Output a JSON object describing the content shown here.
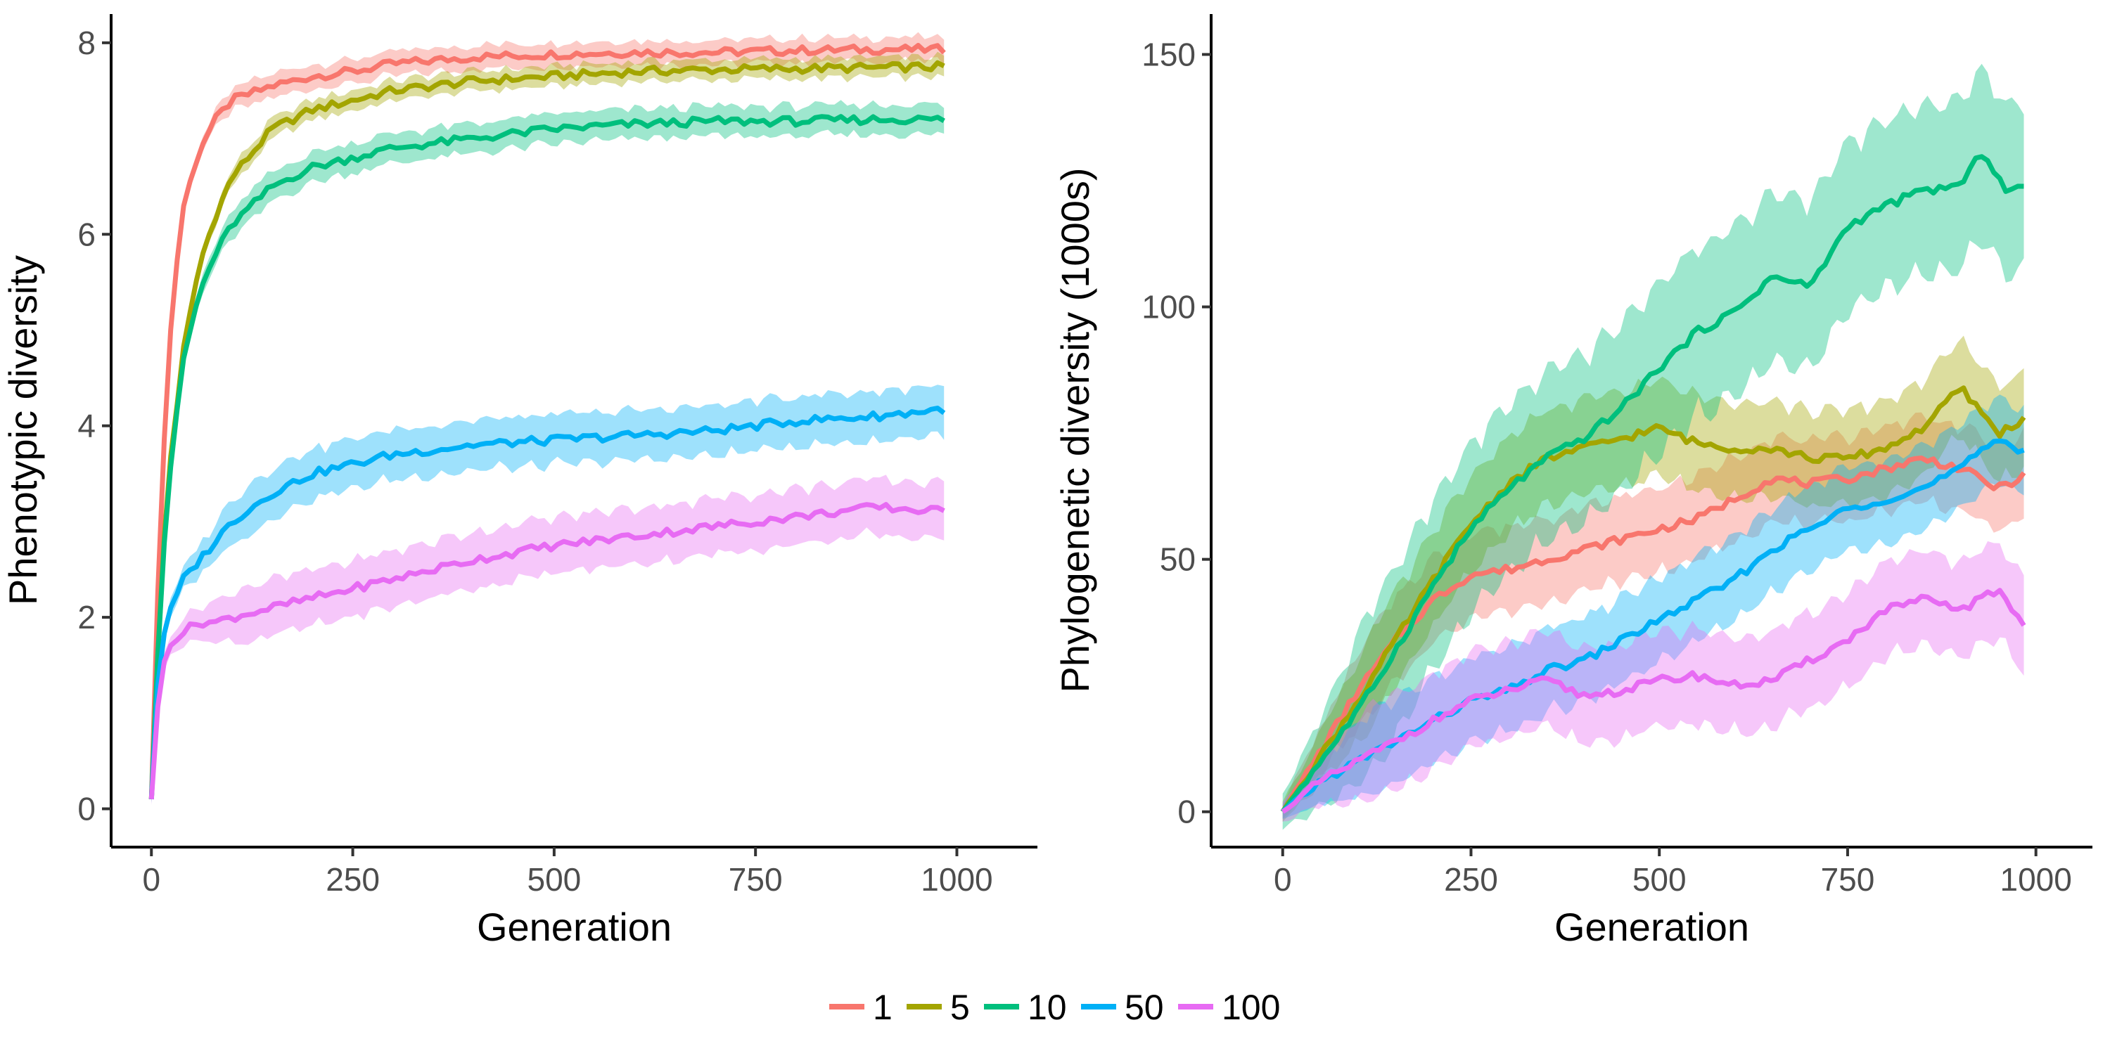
{
  "legend": {
    "entries": [
      {
        "label": "1",
        "color": "#F8766D"
      },
      {
        "label": "5",
        "color": "#A3A500"
      },
      {
        "label": "10",
        "color": "#00BF7D"
      },
      {
        "label": "50",
        "color": "#00B0F6"
      },
      {
        "label": "100",
        "color": "#E76BF3"
      }
    ]
  },
  "chart_data": [
    {
      "type": "line",
      "title": "",
      "xlabel": "Generation",
      "ylabel": "Phenotypic diversity",
      "xlim": [
        -50,
        1100
      ],
      "ylim": [
        -0.4,
        8.3
      ],
      "xticks": [
        0,
        250,
        500,
        750,
        1000
      ],
      "yticks": [
        0,
        2,
        4,
        6,
        8
      ],
      "grid": false,
      "band": "shaded confidence ribbon around each series",
      "series": [
        {
          "name": "1",
          "color": "#F8766D",
          "x": [
            0,
            10,
            20,
            30,
            40,
            60,
            80,
            100,
            150,
            200,
            250,
            300,
            400,
            500,
            600,
            700,
            800,
            900,
            990
          ],
          "y": [
            0.1,
            2.8,
            4.6,
            5.6,
            6.3,
            6.9,
            7.2,
            7.4,
            7.55,
            7.65,
            7.7,
            7.78,
            7.85,
            7.88,
            7.9,
            7.9,
            7.92,
            7.93,
            7.93
          ],
          "band_halfwidth": 0.12
        },
        {
          "name": "5",
          "color": "#A3A500",
          "x": [
            0,
            10,
            20,
            40,
            60,
            80,
            100,
            150,
            200,
            250,
            300,
            400,
            500,
            600,
            700,
            800,
            900,
            990
          ],
          "y": [
            0.1,
            2.0,
            3.4,
            4.8,
            5.7,
            6.2,
            6.6,
            7.1,
            7.3,
            7.4,
            7.5,
            7.6,
            7.65,
            7.7,
            7.72,
            7.73,
            7.74,
            7.75
          ],
          "band_halfwidth": 0.1
        },
        {
          "name": "10",
          "color": "#00BF7D",
          "x": [
            0,
            10,
            20,
            40,
            60,
            80,
            100,
            150,
            200,
            250,
            300,
            400,
            500,
            600,
            700,
            800,
            900,
            990
          ],
          "y": [
            0.1,
            2.0,
            3.3,
            4.7,
            5.4,
            5.8,
            6.1,
            6.5,
            6.7,
            6.8,
            6.9,
            7.0,
            7.1,
            7.15,
            7.18,
            7.18,
            7.2,
            7.2
          ],
          "band_halfwidth": 0.15
        },
        {
          "name": "50",
          "color": "#00B0F6",
          "x": [
            0,
            10,
            20,
            40,
            60,
            80,
            100,
            150,
            200,
            250,
            300,
            400,
            500,
            600,
            700,
            800,
            900,
            990
          ],
          "y": [
            0.1,
            1.6,
            2.0,
            2.4,
            2.6,
            2.8,
            3.0,
            3.3,
            3.5,
            3.6,
            3.7,
            3.8,
            3.85,
            3.9,
            3.95,
            4.05,
            4.1,
            4.18
          ],
          "band_halfwidth": 0.25
        },
        {
          "name": "100",
          "color": "#E76BF3",
          "x": [
            0,
            10,
            20,
            40,
            60,
            80,
            100,
            150,
            200,
            250,
            300,
            400,
            500,
            600,
            700,
            800,
            900,
            990
          ],
          "y": [
            0.1,
            1.3,
            1.7,
            1.85,
            1.95,
            1.95,
            2.0,
            2.1,
            2.2,
            2.3,
            2.4,
            2.6,
            2.75,
            2.85,
            2.95,
            3.05,
            3.15,
            3.1
          ],
          "band_halfwidth": 0.28
        }
      ]
    },
    {
      "type": "line",
      "title": "",
      "xlabel": "Generation",
      "ylabel": "Phylogenetic diversity (1000s)",
      "xlim": [
        -95,
        1075
      ],
      "ylim": [
        -7,
        158
      ],
      "xticks": [
        0,
        250,
        500,
        750,
        1000
      ],
      "yticks": [
        0,
        50,
        100,
        150
      ],
      "grid": false,
      "band": "shaded confidence ribbon around each series",
      "series": [
        {
          "name": "1",
          "color": "#F8766D",
          "x": [
            0,
            50,
            100,
            150,
            200,
            250,
            300,
            350,
            400,
            450,
            500,
            550,
            600,
            650,
            700,
            750,
            800,
            850,
            900,
            950,
            990
          ],
          "y": [
            0,
            12,
            24,
            34,
            42,
            47,
            48,
            50,
            52,
            54,
            56,
            58,
            62,
            66,
            65,
            66,
            68,
            70,
            68,
            64,
            67
          ],
          "band_halfwidth": 8
        },
        {
          "name": "5",
          "color": "#A3A500",
          "x": [
            0,
            50,
            100,
            150,
            200,
            250,
            300,
            350,
            400,
            450,
            500,
            550,
            600,
            650,
            700,
            750,
            800,
            850,
            900,
            950,
            990
          ],
          "y": [
            0,
            11,
            22,
            34,
            46,
            57,
            65,
            70,
            72,
            74,
            76,
            73,
            72,
            72,
            70,
            70,
            72,
            76,
            84,
            75,
            78
          ],
          "band_halfwidth": 9
        },
        {
          "name": "10",
          "color": "#00BF7D",
          "x": [
            0,
            50,
            100,
            150,
            200,
            250,
            300,
            350,
            400,
            450,
            500,
            550,
            600,
            650,
            700,
            750,
            800,
            850,
            900,
            930,
            960,
            990
          ],
          "y": [
            0,
            10,
            20,
            32,
            45,
            56,
            64,
            70,
            74,
            80,
            88,
            95,
            99,
            106,
            104,
            116,
            120,
            123,
            124,
            131,
            123,
            124
          ],
          "band_halfwidth": 16
        },
        {
          "name": "50",
          "color": "#00B0F6",
          "x": [
            0,
            50,
            100,
            150,
            200,
            250,
            300,
            350,
            400,
            450,
            500,
            550,
            600,
            650,
            700,
            750,
            800,
            850,
            900,
            950,
            990
          ],
          "y": [
            0,
            6,
            10,
            14,
            18,
            22,
            24,
            28,
            30,
            34,
            38,
            42,
            46,
            52,
            56,
            60,
            62,
            64,
            68,
            74,
            71
          ],
          "band_halfwidth": 8
        },
        {
          "name": "100",
          "color": "#E76BF3",
          "x": [
            0,
            50,
            100,
            150,
            200,
            250,
            300,
            350,
            400,
            450,
            500,
            550,
            600,
            650,
            700,
            750,
            800,
            850,
            900,
            950,
            990
          ],
          "y": [
            0,
            6,
            10,
            14,
            18,
            22,
            24,
            26,
            23,
            24,
            26,
            27,
            25,
            26,
            30,
            34,
            40,
            42,
            40,
            44,
            36
          ],
          "band_halfwidth": 9
        }
      ]
    }
  ]
}
